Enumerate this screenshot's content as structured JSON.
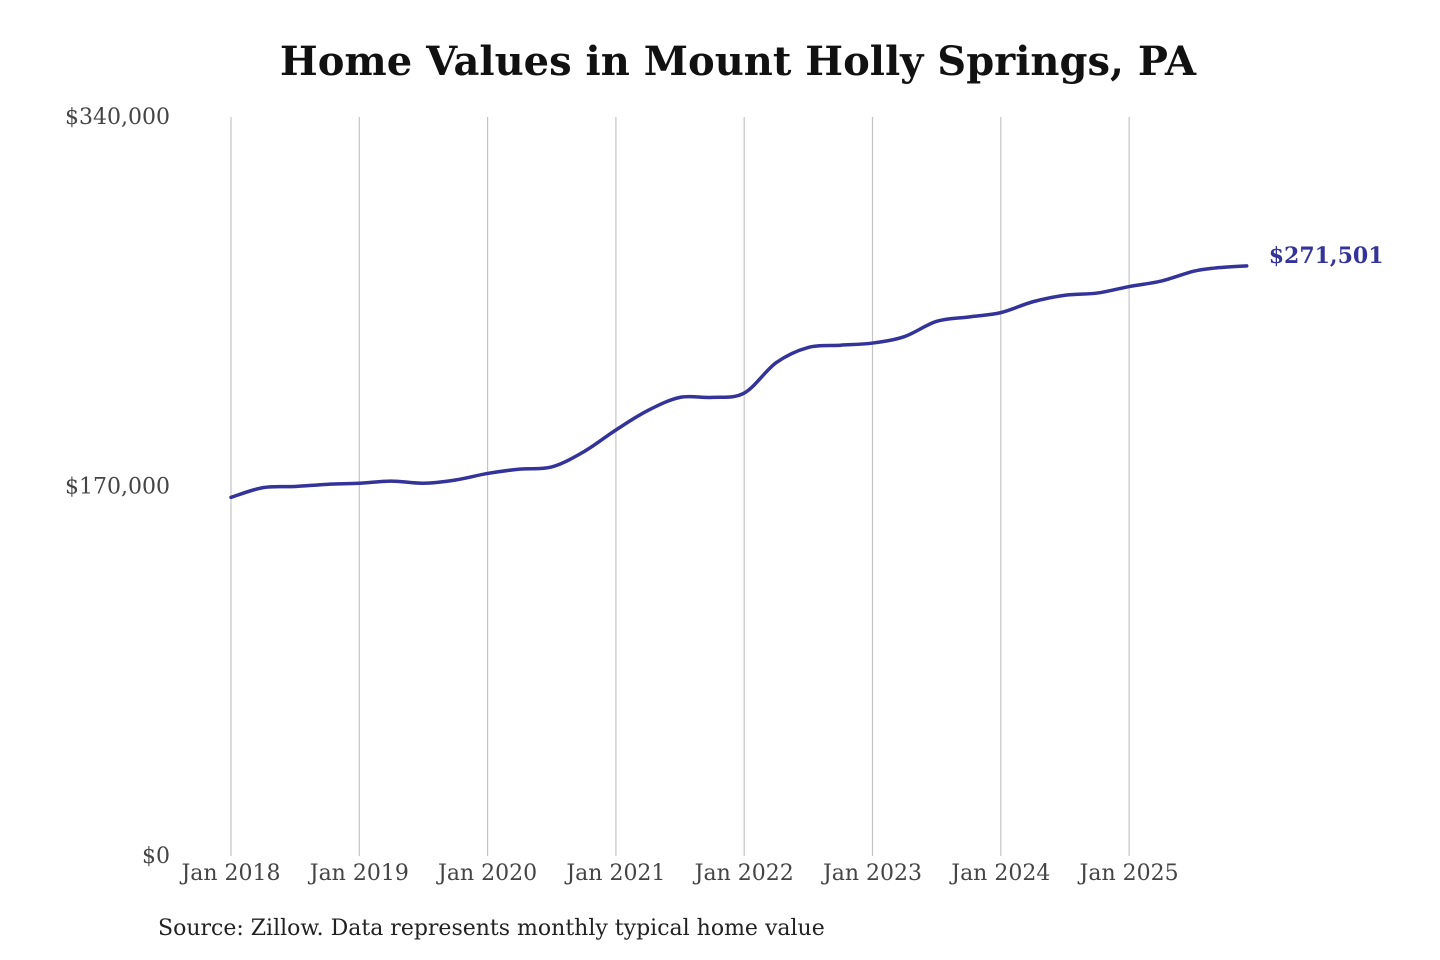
{
  "chart_data": {
    "type": "line",
    "title": "Home Values in Mount Holly Springs, PA",
    "xlabel": "",
    "ylabel": "",
    "ylim": [
      0,
      340000
    ],
    "y_ticks": [
      {
        "value": 0,
        "label": "$0"
      },
      {
        "value": 170000,
        "label": "$170,000"
      },
      {
        "value": 340000,
        "label": "$340,000"
      }
    ],
    "x_range": [
      "2018-01",
      "2026-05"
    ],
    "x_ticks": [
      {
        "date": "2018-01",
        "label": "Jan 2018"
      },
      {
        "date": "2019-01",
        "label": "Jan 2019"
      },
      {
        "date": "2020-01",
        "label": "Jan 2020"
      },
      {
        "date": "2021-01",
        "label": "Jan 2021"
      },
      {
        "date": "2022-01",
        "label": "Jan 2022"
      },
      {
        "date": "2023-01",
        "label": "Jan 2023"
      },
      {
        "date": "2024-01",
        "label": "Jan 2024"
      },
      {
        "date": "2025-01",
        "label": "Jan 2025"
      }
    ],
    "grid": {
      "vertical": true,
      "horizontal": false
    },
    "legend": "none",
    "line_color": "#333399",
    "grid_color": "#c4c4c4",
    "end_label": "$271,501",
    "series": [
      {
        "points": [
          {
            "date": "2018-01",
            "value": 165000
          },
          {
            "date": "2018-04",
            "value": 169500
          },
          {
            "date": "2018-07",
            "value": 170000
          },
          {
            "date": "2018-10",
            "value": 171000
          },
          {
            "date": "2019-01",
            "value": 171500
          },
          {
            "date": "2019-04",
            "value": 172500
          },
          {
            "date": "2019-07",
            "value": 171500
          },
          {
            "date": "2019-10",
            "value": 173000
          },
          {
            "date": "2020-01",
            "value": 176000
          },
          {
            "date": "2020-04",
            "value": 178000
          },
          {
            "date": "2020-07",
            "value": 179000
          },
          {
            "date": "2020-10",
            "value": 186000
          },
          {
            "date": "2021-01",
            "value": 196000
          },
          {
            "date": "2021-04",
            "value": 205000
          },
          {
            "date": "2021-07",
            "value": 211000
          },
          {
            "date": "2021-10",
            "value": 211000
          },
          {
            "date": "2022-01",
            "value": 213000
          },
          {
            "date": "2022-04",
            "value": 227000
          },
          {
            "date": "2022-07",
            "value": 234000
          },
          {
            "date": "2022-10",
            "value": 235000
          },
          {
            "date": "2023-01",
            "value": 236000
          },
          {
            "date": "2023-04",
            "value": 239000
          },
          {
            "date": "2023-07",
            "value": 246000
          },
          {
            "date": "2023-10",
            "value": 248000
          },
          {
            "date": "2024-01",
            "value": 250000
          },
          {
            "date": "2024-04",
            "value": 255000
          },
          {
            "date": "2024-07",
            "value": 258000
          },
          {
            "date": "2024-10",
            "value": 259000
          },
          {
            "date": "2025-01",
            "value": 262000
          },
          {
            "date": "2025-04",
            "value": 264500
          },
          {
            "date": "2025-07",
            "value": 269000
          },
          {
            "date": "2025-09",
            "value": 270500
          },
          {
            "date": "2025-12",
            "value": 271501
          }
        ]
      }
    ]
  },
  "source_note": "Source: Zillow. Data represents monthly typical home value"
}
